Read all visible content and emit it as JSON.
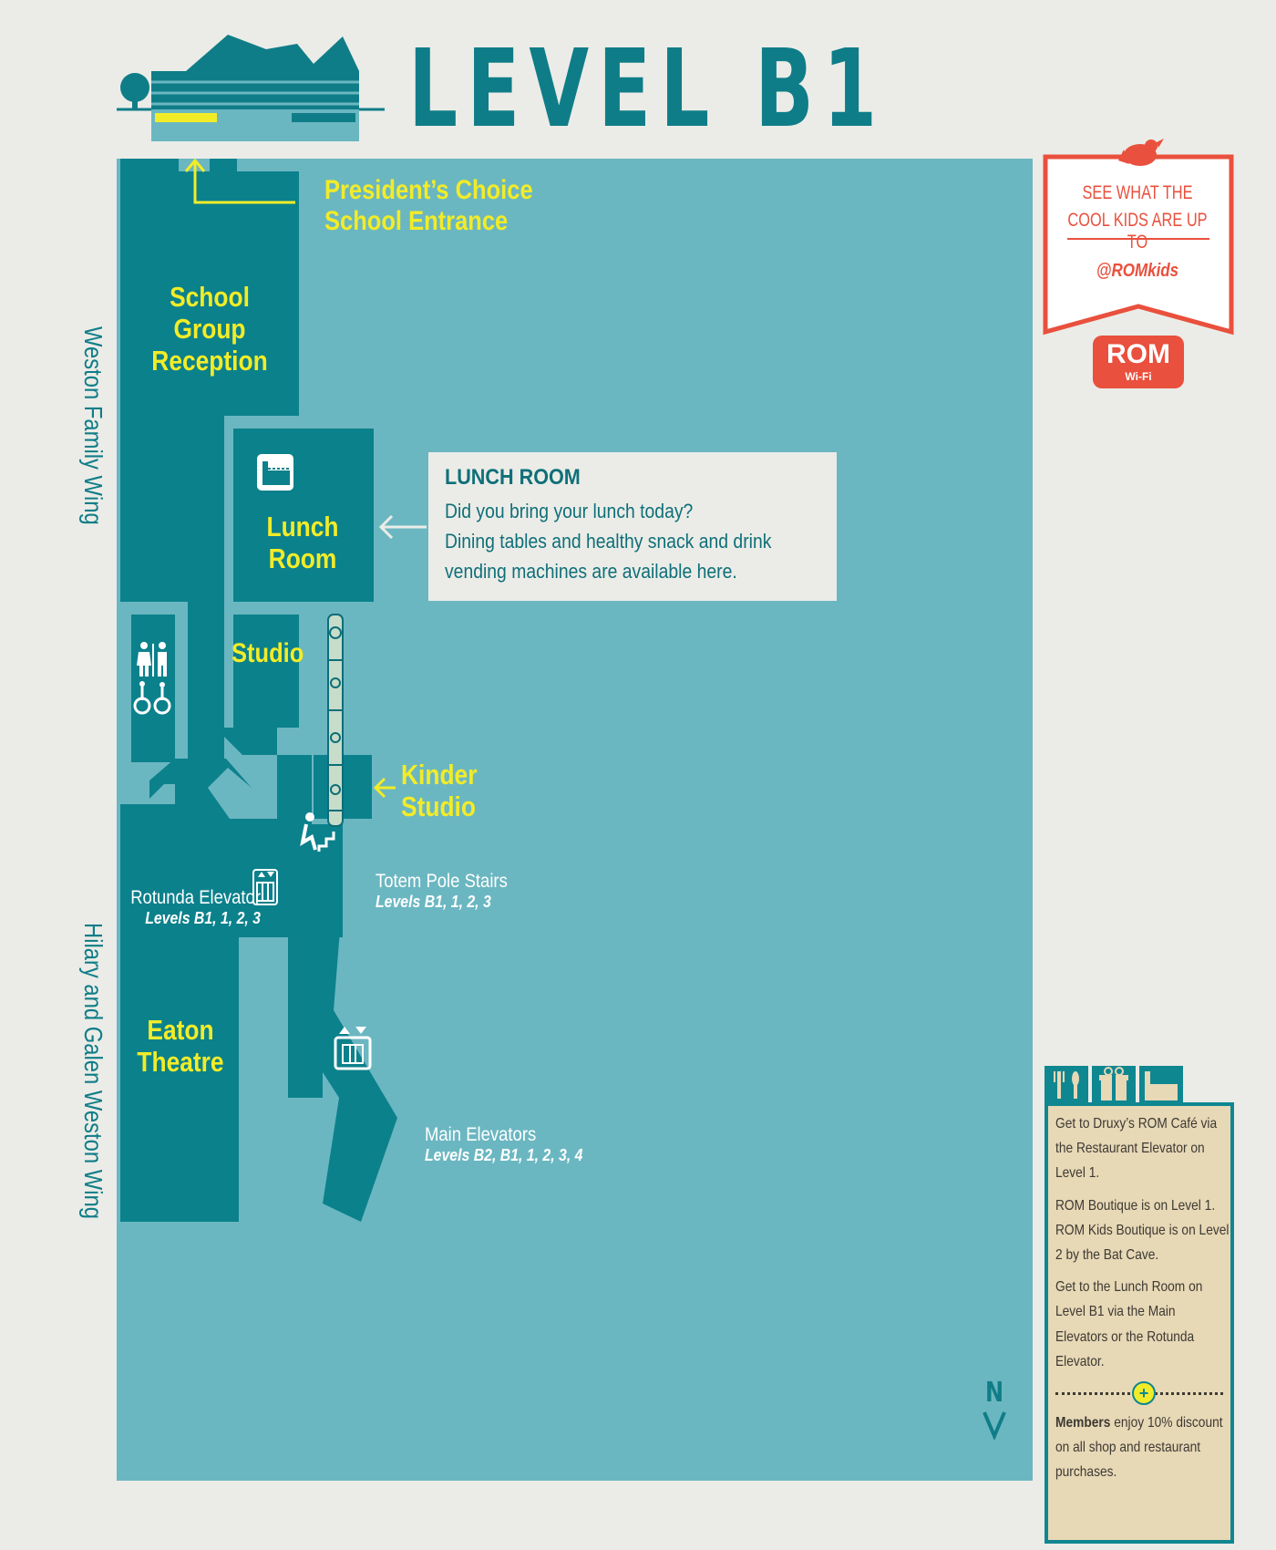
{
  "header": {
    "title": "LEVEL B1",
    "building_icon": "building-level-icon"
  },
  "colors": {
    "background": "#ebece7",
    "map_floor": "#6bb7c1",
    "rooms": "#0b818c",
    "label_yellow": "#f2ec28",
    "title_teal": "#0f7d88",
    "badge_red": "#e9503d",
    "info_panel": "#e7d8b6"
  },
  "map": {
    "entrance_label": "President’s Choice\nSchool Entrance",
    "school_group_reception": "School\nGroup\nReception",
    "lunch_room": "Lunch\nRoom",
    "studio": "Studio",
    "kinder_studio": "Kinder\nStudio",
    "eaton_theatre": "Eaton\nTheatre",
    "rotunda_elevator": {
      "title": "Rotunda Elevator",
      "levels": "Levels B1, 1, 2, 3"
    },
    "totem_pole_stairs": {
      "title": "Totem Pole Stairs",
      "levels": "Levels B1, 1, 2, 3"
    },
    "main_elevators": {
      "title": "Main Elevators",
      "levels": "Levels B2, B1, 1, 2, 3, 4"
    },
    "wings": {
      "upper": "Weston Family Wing",
      "lower": "Hilary and Galen Weston Wing"
    },
    "north_label": "N"
  },
  "lunch_callout": {
    "heading": "LUNCH ROOM",
    "lines": [
      "Did you bring your lunch today?",
      "Dining tables and healthy snack and drink",
      "vending machines are available here."
    ]
  },
  "twitter_badge": {
    "line1": "SEE WHAT THE",
    "line2": "COOL KIDS ARE UP TO",
    "handle": "@ROMkids",
    "logo_text": "ROM",
    "wifi_text": "Wi-Fi"
  },
  "info_box": {
    "tabs": [
      "restaurant-icon",
      "gift-icon",
      "lunch-room-icon"
    ],
    "paragraphs": [
      "Get to Druxy’s ROM Café via the Restaurant Elevator on Level 1.",
      "ROM Boutique is on Level 1. ROM Kids Boutique is on Level 2 by the Bat Cave.",
      "Get to the Lunch Room on Level B1 via the Main Elevators or the Rotunda Elevator."
    ],
    "members_bold": "Members",
    "members_rest": " enjoy 10% discount on all shop and restaurant purchases.",
    "plus_symbol": "+"
  }
}
